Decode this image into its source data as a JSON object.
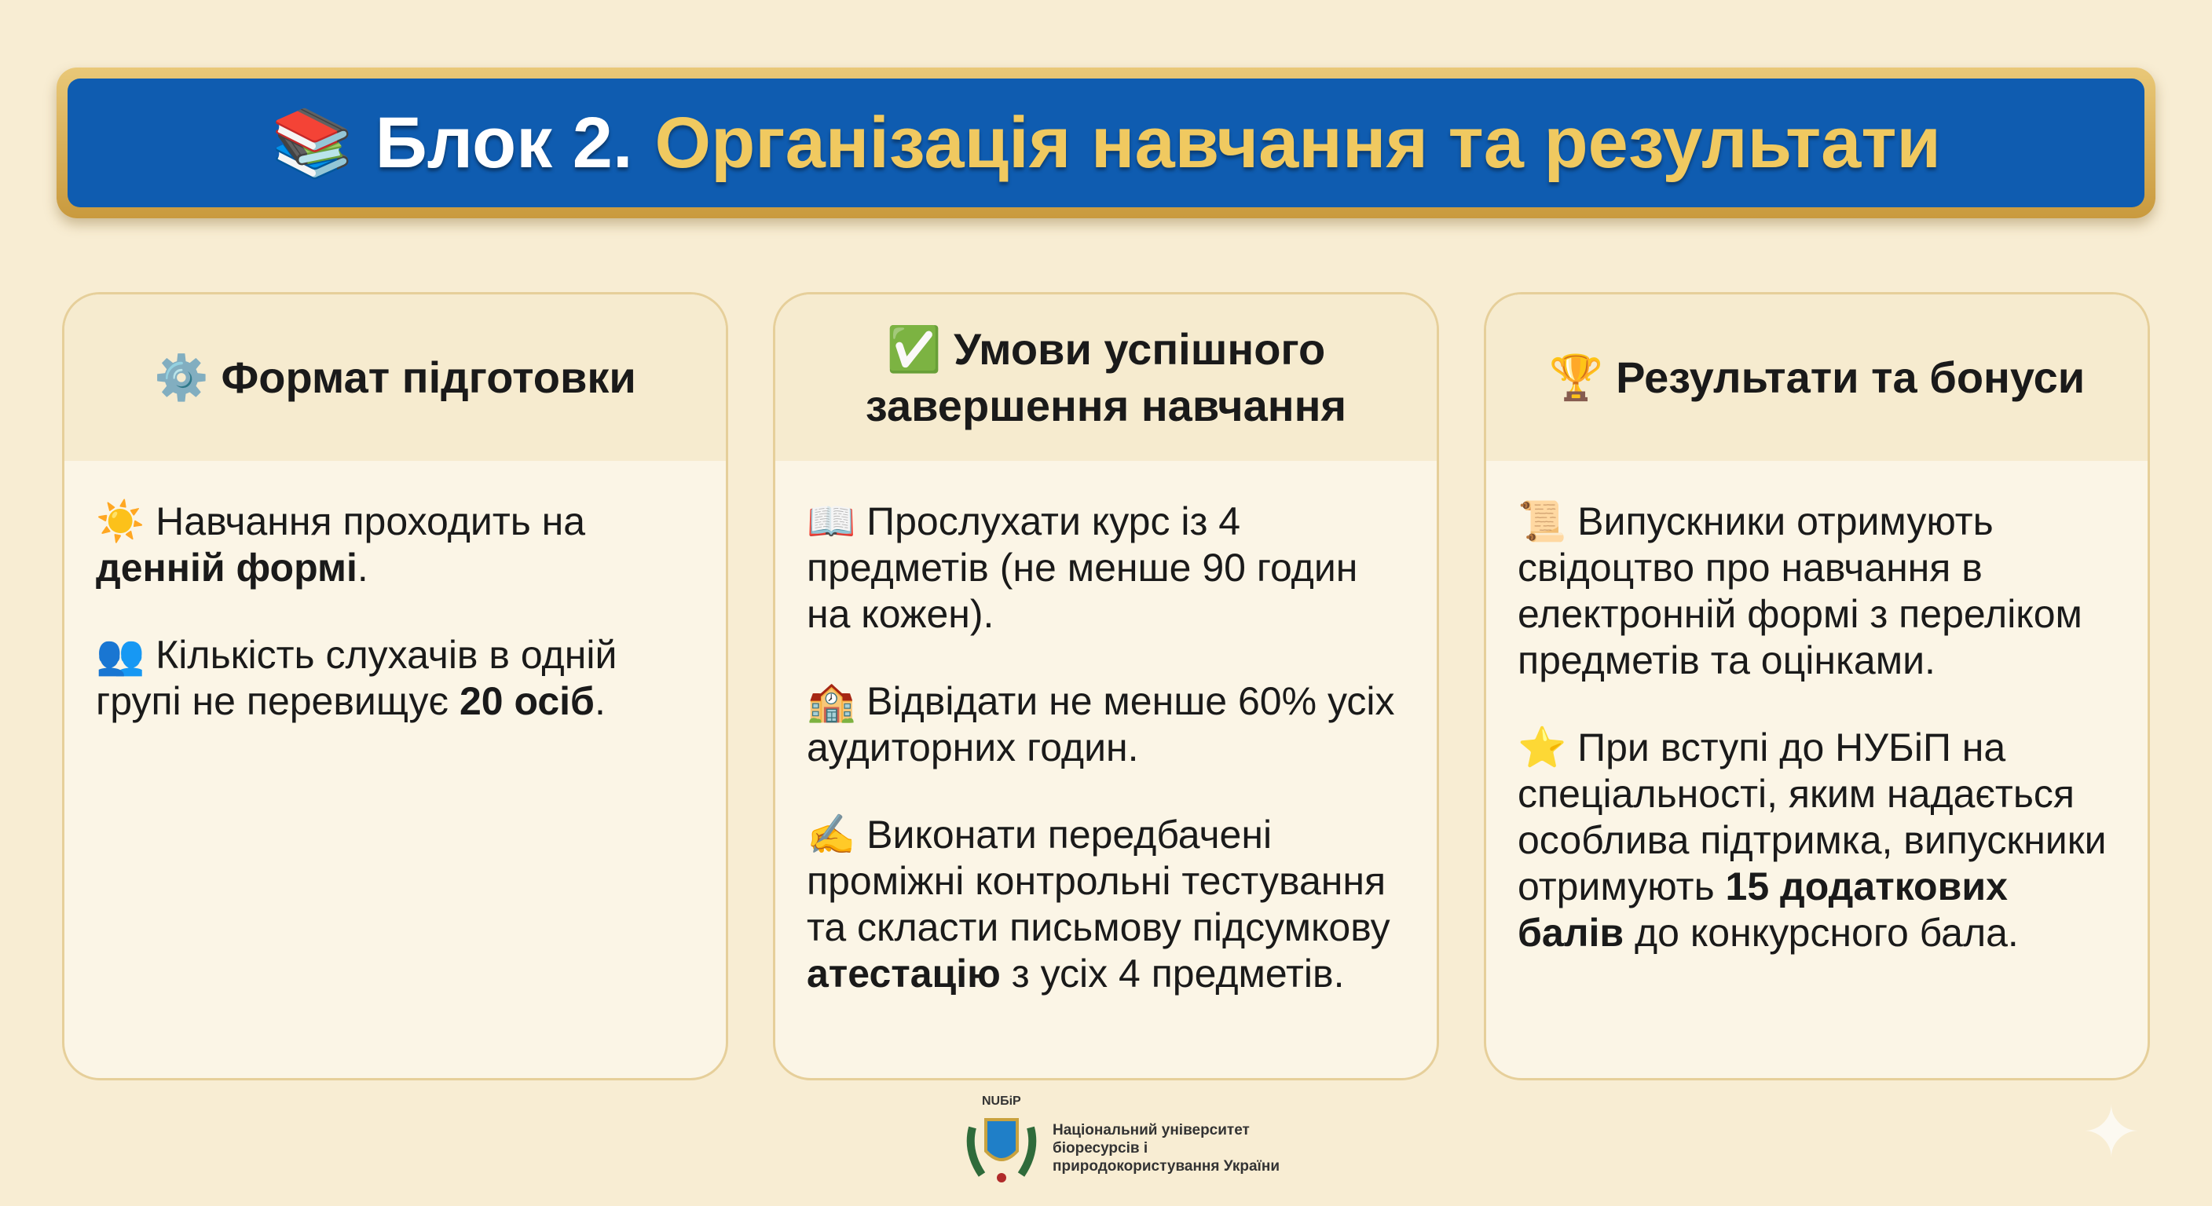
{
  "title": {
    "icon": "books-icon",
    "prefix": "Блок 2.",
    "main": "Організація навчання та результати",
    "glyph": "📚"
  },
  "cards": [
    {
      "icon": "gear-icon",
      "glyph": "⚙️",
      "heading": "Формат підготовки",
      "items": [
        {
          "icon": "sun-icon",
          "glyph": "☀️",
          "parts": [
            {
              "t": "Навчання проходить на "
            },
            {
              "t": "денній формі",
              "b": true
            },
            {
              "t": "."
            }
          ]
        },
        {
          "icon": "people-icon",
          "glyph": "👥",
          "parts": [
            {
              "t": "Кількість слухачів в одній групі не перевищує "
            },
            {
              "t": "20 осіб",
              "b": true
            },
            {
              "t": "."
            }
          ]
        }
      ]
    },
    {
      "icon": "check-icon",
      "glyph": "✅",
      "heading": "Умови успішного завершення навчання",
      "items": [
        {
          "icon": "book-icon",
          "glyph": "📖",
          "parts": [
            {
              "t": "Прослухати курс із 4 предметів (не менше 90 годин на кожен)."
            }
          ]
        },
        {
          "icon": "school-icon",
          "glyph": "🏫",
          "parts": [
            {
              "t": "Відвідати не менше 60% усіх аудиторних годин."
            }
          ]
        },
        {
          "icon": "writing-hand-icon",
          "glyph": "✍️",
          "parts": [
            {
              "t": "Виконати передбачені проміжні контрольні тестування та скласти письмову підсумкову "
            },
            {
              "t": "атестацію",
              "b": true
            },
            {
              "t": " з усіх 4 предметів."
            }
          ]
        }
      ]
    },
    {
      "icon": "trophy-icon",
      "glyph": "🏆",
      "heading": "Результати та бонуси",
      "items": [
        {
          "icon": "scroll-icon",
          "glyph": "📜",
          "parts": [
            {
              "t": "Випускники отримують свідоцтво про навчання в електронній формі з переліком предметів та оцінками."
            }
          ]
        },
        {
          "icon": "star-icon",
          "glyph": "⭐",
          "parts": [
            {
              "t": "При вступі до НУБіП на спеціальності, яким надається особлива підтримка, випускники отримують "
            },
            {
              "t": "15 додаткових балів",
              "b": true
            },
            {
              "t": " до конкурсного бала."
            }
          ]
        }
      ]
    }
  ],
  "footer": {
    "abbr": "NUБiP",
    "name_lines": [
      "Національний університет",
      "біоресурсів і",
      "природокористування України"
    ]
  },
  "colors": {
    "background": "#f8edd3",
    "banner": "#0f5cb0",
    "gold": "#f0c960",
    "border": "#e6cf9a"
  }
}
